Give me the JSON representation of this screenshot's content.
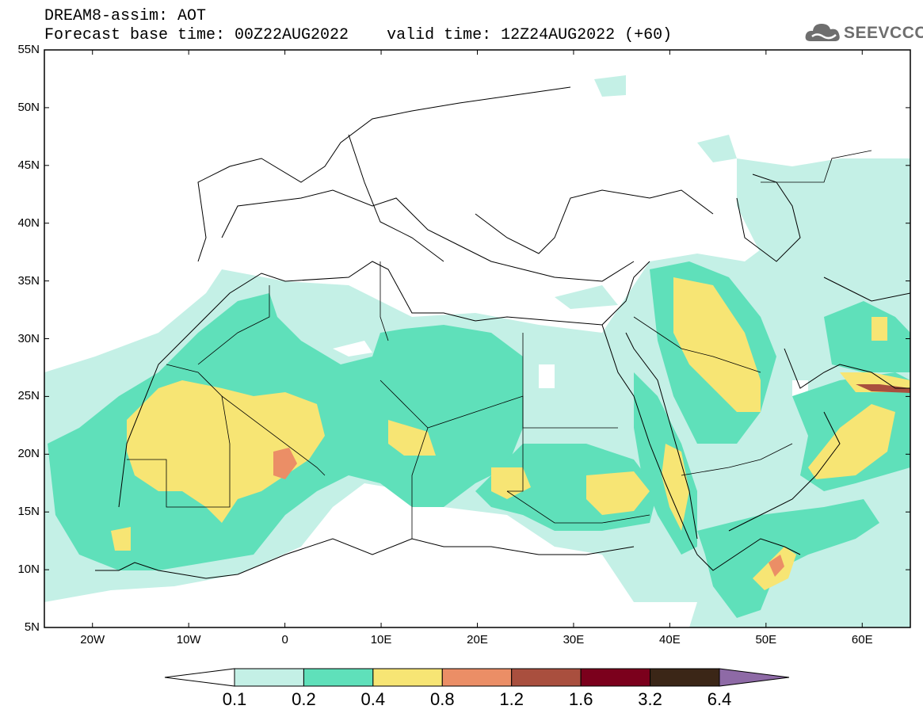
{
  "title": {
    "line1": "DREAM8-assim: AOT",
    "line2": "Forecast base time: 00Z22AUG2022    valid time: 12Z24AUG2022 (+60)"
  },
  "logo": {
    "text": "SEEVCCC",
    "icon": "cloud-icon"
  },
  "map": {
    "lat_range": [
      5,
      55
    ],
    "lon_range": [
      -25,
      65
    ],
    "lat_labels": [
      "55N",
      "50N",
      "45N",
      "40N",
      "35N",
      "30N",
      "25N",
      "20N",
      "15N",
      "10N",
      "5N"
    ],
    "lon_labels": [
      "20W",
      "10W",
      "0",
      "10E",
      "20E",
      "30E",
      "40E",
      "50E",
      "60E"
    ]
  },
  "legend": {
    "colors": [
      "#ffffff",
      "#c4f0e6",
      "#5fe0ba",
      "#f7e574",
      "#eb8e66",
      "#a94f3e",
      "#7b001c",
      "#3b2617",
      "#8e6aa6"
    ],
    "labels": [
      "0.1",
      "0.2",
      "0.4",
      "0.8",
      "1.2",
      "1.6",
      "3.2",
      "6.4"
    ]
  }
}
